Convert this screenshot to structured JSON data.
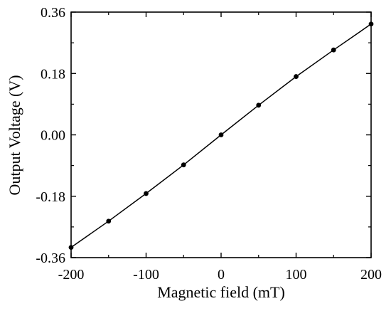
{
  "chart_data": {
    "type": "line",
    "title": "",
    "xlabel": "Magnetic field (mT)",
    "ylabel": "Output Voltage (V)",
    "xlim": [
      -200,
      200
    ],
    "ylim": [
      -0.36,
      0.36
    ],
    "xticks": [
      -200,
      -100,
      0,
      100,
      200
    ],
    "xtick_labels": [
      "-200",
      "-100",
      "0",
      "100",
      "200"
    ],
    "yticks": [
      -0.36,
      -0.18,
      0.0,
      0.18,
      0.36
    ],
    "ytick_labels": [
      "-0.36",
      "-0.18",
      "0.00",
      "0.18",
      "0.36"
    ],
    "grid": false,
    "legend": "none",
    "series": [
      {
        "x": [
          -200,
          -150,
          -100,
          -50,
          0,
          50,
          100,
          150,
          200
        ],
        "y": [
          -0.33,
          -0.253,
          -0.172,
          -0.088,
          0.0,
          0.087,
          0.171,
          0.249,
          0.325
        ],
        "marker": "filled-circle",
        "line": "solid"
      }
    ],
    "colors": {
      "line": "#000000",
      "marker": "#000000",
      "axis": "#000000"
    }
  }
}
